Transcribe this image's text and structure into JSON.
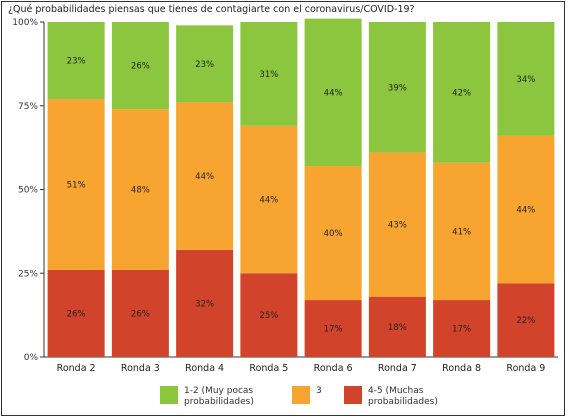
{
  "chart_data": {
    "type": "bar",
    "stacked": true,
    "title": "¿Qué probabilidades piensas que tienes de contagiarte con el coronavirus/COVID-19?",
    "categories": [
      "Ronda 2",
      "Ronda 3",
      "Ronda 4",
      "Ronda 5",
      "Ronda 6",
      "Ronda 7",
      "Ronda 8",
      "Ronda 9"
    ],
    "y_ticks": [
      "0%",
      "25%",
      "50%",
      "75%",
      "100%"
    ],
    "ylim": [
      0,
      100
    ],
    "grid": false,
    "legend_position": "bottom",
    "series": [
      {
        "name": "4-5 (Muchas probabilidades)",
        "color": "#d1432b",
        "values": [
          26,
          26,
          32,
          25,
          17,
          18,
          17,
          22
        ],
        "labels": [
          "26%",
          "26%",
          "32%",
          "25%",
          "17%",
          "18%",
          "17%",
          "22%"
        ]
      },
      {
        "name": "3",
        "color": "#f7a530",
        "values": [
          51,
          48,
          44,
          44,
          40,
          43,
          41,
          44
        ],
        "labels": [
          "51%",
          "48%",
          "44%",
          "44%",
          "40%",
          "43%",
          "41%",
          "44%"
        ]
      },
      {
        "name": "1-2 (Muy pocas probabilidades)",
        "color": "#8cc63f",
        "values": [
          23,
          26,
          23,
          31,
          44,
          39,
          42,
          34
        ],
        "labels": [
          "23%",
          "26%",
          "23%",
          "31%",
          "44%",
          "39%",
          "42%",
          "34%"
        ]
      }
    ],
    "legend": [
      {
        "label": "1-2 (Muy pocas probabilidades)",
        "color": "#8cc63f"
      },
      {
        "label": "3",
        "color": "#f7a530"
      },
      {
        "label": "4-5 (Muchas probabilidades)",
        "color": "#d1432b"
      }
    ]
  }
}
